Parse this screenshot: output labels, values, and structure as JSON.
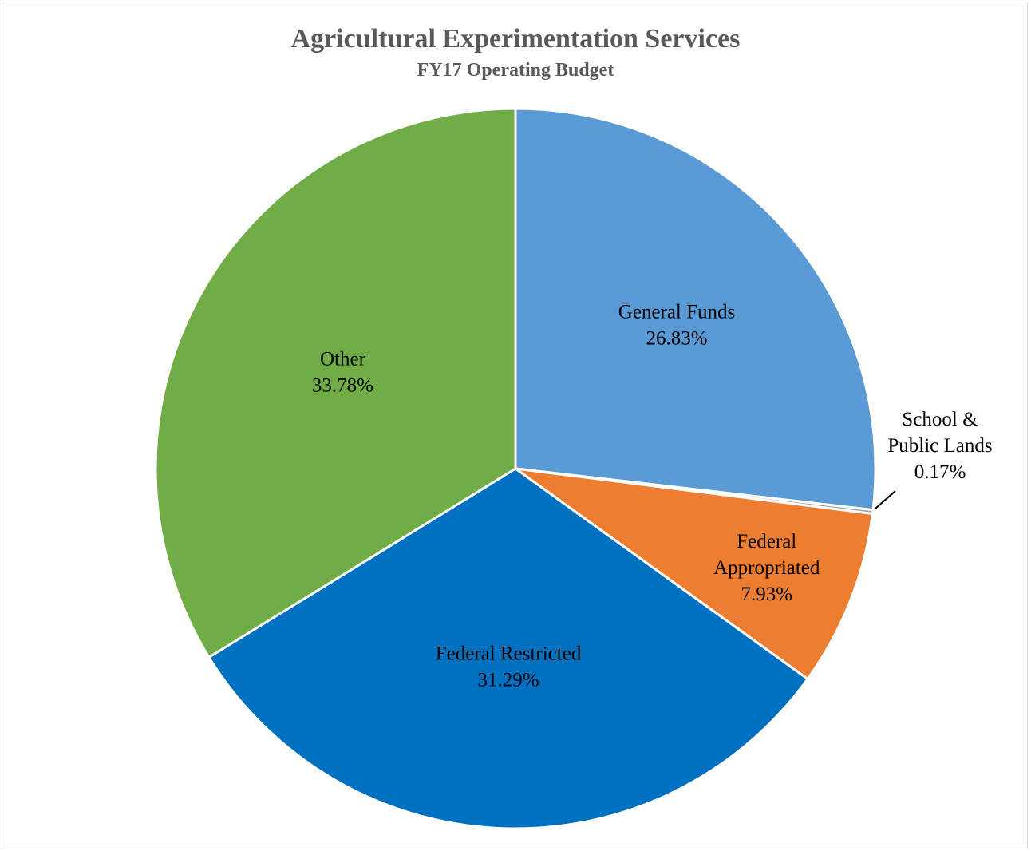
{
  "chart_data": {
    "type": "pie",
    "title": "Agricultural Experimentation Services",
    "subtitle": "FY17 Operating Budget",
    "slices": [
      {
        "label_lines": [
          "General Funds"
        ],
        "value_label": "26.83%",
        "value": 26.83,
        "color": "#5b9bd5"
      },
      {
        "label_lines": [
          "School &",
          "Public Lands"
        ],
        "value_label": "0.17%",
        "value": 0.17,
        "color": "#a5a5a5"
      },
      {
        "label_lines": [
          "Federal",
          "Appropriated"
        ],
        "value_label": "7.93%",
        "value": 7.93,
        "color": "#ed7d31"
      },
      {
        "label_lines": [
          "Federal Restricted"
        ],
        "value_label": "31.29%",
        "value": 31.29,
        "color": "#0070c0"
      },
      {
        "label_lines": [
          "Other"
        ],
        "value_label": "33.78%",
        "value": 33.78,
        "color": "#70ad47"
      }
    ]
  }
}
